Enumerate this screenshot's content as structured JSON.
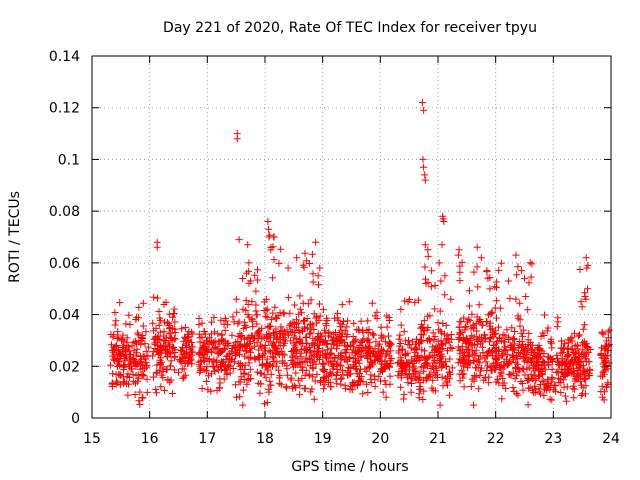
{
  "chart_data": {
    "type": "scatter",
    "title": "Day 221 of 2020, Rate Of TEC Index for receiver tpyu",
    "xlabel": "GPS time / hours",
    "ylabel": "ROTI / TECUs",
    "xlim": [
      15,
      24
    ],
    "ylim": [
      0,
      0.14
    ],
    "xticks": [
      "15",
      "16",
      "17",
      "18",
      "19",
      "20",
      "21",
      "22",
      "23",
      "24"
    ],
    "yticks": [
      "0",
      "0.02",
      "0.04",
      "0.06",
      "0.08",
      "0.1",
      "0.12",
      "0.14"
    ],
    "grid": true,
    "marker": "+",
    "color": "#ff0000",
    "clusters": [
      {
        "x0": 15.32,
        "x1": 15.98,
        "base": 0.022,
        "spread": 0.008,
        "count": 170,
        "max": 0.045
      },
      {
        "x0": 16.05,
        "x1": 16.45,
        "base": 0.026,
        "spread": 0.008,
        "count": 120,
        "max": 0.048
      },
      {
        "x0": 16.5,
        "x1": 16.75,
        "base": 0.024,
        "spread": 0.006,
        "count": 60,
        "max": 0.035
      },
      {
        "x0": 16.85,
        "x1": 17.5,
        "base": 0.024,
        "spread": 0.007,
        "count": 160,
        "max": 0.04
      },
      {
        "x0": 17.5,
        "x1": 18.45,
        "base": 0.028,
        "spread": 0.011,
        "count": 260,
        "max": 0.075
      },
      {
        "x0": 18.45,
        "x1": 19.0,
        "base": 0.026,
        "spread": 0.01,
        "count": 180,
        "max": 0.065
      },
      {
        "x0": 19.0,
        "x1": 19.6,
        "base": 0.024,
        "spread": 0.008,
        "count": 180,
        "max": 0.05
      },
      {
        "x0": 19.6,
        "x1": 20.2,
        "base": 0.023,
        "spread": 0.008,
        "count": 160,
        "max": 0.045
      },
      {
        "x0": 20.3,
        "x1": 20.7,
        "base": 0.021,
        "spread": 0.007,
        "count": 110,
        "max": 0.047
      },
      {
        "x0": 20.7,
        "x1": 21.25,
        "base": 0.025,
        "spread": 0.009,
        "count": 150,
        "max": 0.067
      },
      {
        "x0": 21.35,
        "x1": 22.0,
        "base": 0.026,
        "spread": 0.009,
        "count": 200,
        "max": 0.066
      },
      {
        "x0": 22.0,
        "x1": 22.65,
        "base": 0.022,
        "spread": 0.008,
        "count": 180,
        "max": 0.063
      },
      {
        "x0": 22.65,
        "x1": 23.3,
        "base": 0.02,
        "spread": 0.007,
        "count": 180,
        "max": 0.04
      },
      {
        "x0": 23.3,
        "x1": 23.65,
        "base": 0.021,
        "spread": 0.008,
        "count": 110,
        "max": 0.062
      },
      {
        "x0": 23.8,
        "x1": 23.97,
        "base": 0.022,
        "spread": 0.008,
        "count": 50,
        "max": 0.034
      }
    ],
    "notable_points": [
      {
        "x": 15.42,
        "y": 0.013
      },
      {
        "x": 15.55,
        "y": 0.014
      },
      {
        "x": 15.83,
        "y": 0.01
      },
      {
        "x": 16.13,
        "y": 0.068
      },
      {
        "x": 16.13,
        "y": 0.066
      },
      {
        "x": 17.52,
        "y": 0.11
      },
      {
        "x": 17.52,
        "y": 0.108
      },
      {
        "x": 17.55,
        "y": 0.069
      },
      {
        "x": 17.7,
        "y": 0.067
      },
      {
        "x": 17.72,
        "y": 0.06
      },
      {
        "x": 17.68,
        "y": 0.056
      },
      {
        "x": 17.75,
        "y": 0.053
      },
      {
        "x": 18.05,
        "y": 0.076
      },
      {
        "x": 18.06,
        "y": 0.073
      },
      {
        "x": 18.07,
        "y": 0.07
      },
      {
        "x": 18.1,
        "y": 0.065
      },
      {
        "x": 18.04,
        "y": 0.006
      },
      {
        "x": 18.07,
        "y": 0.01
      },
      {
        "x": 18.4,
        "y": 0.058
      },
      {
        "x": 18.55,
        "y": 0.062
      },
      {
        "x": 18.88,
        "y": 0.068
      },
      {
        "x": 18.95,
        "y": 0.058
      },
      {
        "x": 18.92,
        "y": 0.055
      },
      {
        "x": 20.05,
        "y": 0.01
      },
      {
        "x": 20.1,
        "y": 0.008
      },
      {
        "x": 20.73,
        "y": 0.122
      },
      {
        "x": 20.75,
        "y": 0.119
      },
      {
        "x": 20.74,
        "y": 0.1
      },
      {
        "x": 20.75,
        "y": 0.097
      },
      {
        "x": 20.77,
        "y": 0.094
      },
      {
        "x": 20.78,
        "y": 0.092
      },
      {
        "x": 21.08,
        "y": 0.078
      },
      {
        "x": 21.09,
        "y": 0.077
      },
      {
        "x": 21.1,
        "y": 0.076
      },
      {
        "x": 21.07,
        "y": 0.067
      },
      {
        "x": 20.78,
        "y": 0.067
      },
      {
        "x": 21.02,
        "y": 0.06
      },
      {
        "x": 21.12,
        "y": 0.055
      },
      {
        "x": 21.05,
        "y": 0.053
      },
      {
        "x": 21.68,
        "y": 0.066
      },
      {
        "x": 21.75,
        "y": 0.062
      },
      {
        "x": 21.85,
        "y": 0.057
      },
      {
        "x": 21.9,
        "y": 0.05
      },
      {
        "x": 22.35,
        "y": 0.063
      },
      {
        "x": 22.45,
        "y": 0.057
      },
      {
        "x": 22.5,
        "y": 0.054
      },
      {
        "x": 22.52,
        "y": 0.047
      },
      {
        "x": 22.35,
        "y": 0.046
      },
      {
        "x": 23.57,
        "y": 0.062
      },
      {
        "x": 23.6,
        "y": 0.059
      },
      {
        "x": 23.58,
        "y": 0.058
      },
      {
        "x": 23.55,
        "y": 0.047
      },
      {
        "x": 23.48,
        "y": 0.045
      },
      {
        "x": 23.5,
        "y": 0.043
      },
      {
        "x": 23.92,
        "y": 0.012
      },
      {
        "x": 23.85,
        "y": 0.008
      },
      {
        "x": 23.88,
        "y": 0.007
      },
      {
        "x": 23.95,
        "y": 0.013
      }
    ]
  }
}
